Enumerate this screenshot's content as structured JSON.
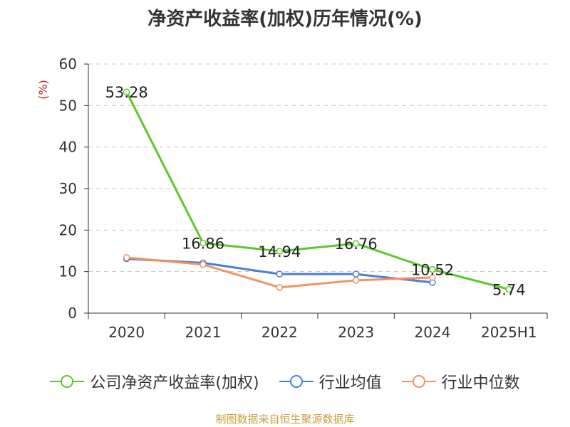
{
  "chart_data": {
    "type": "line",
    "title": "净资产收益率(加权)历年情况(%)",
    "ylabel": "(%)",
    "xlabel": "",
    "categories": [
      "2020",
      "2021",
      "2022",
      "2023",
      "2024",
      "2025H1"
    ],
    "ylim": [
      0,
      60
    ],
    "yticks": [
      0,
      10,
      20,
      30,
      40,
      50,
      60
    ],
    "grid": true,
    "legend_position": "bottom",
    "series": [
      {
        "name": "公司净资产收益率(加权)",
        "color": "#5cc72a",
        "values": [
          53.28,
          16.86,
          14.94,
          16.76,
          10.52,
          5.74
        ],
        "labels": [
          "53.28",
          "16.86",
          "14.94",
          "16.76",
          "10.52",
          "5.74"
        ]
      },
      {
        "name": "行业均值",
        "color": "#4a7fd6",
        "values": [
          13.1,
          12.1,
          9.4,
          9.4,
          7.4,
          null
        ],
        "labels": []
      },
      {
        "name": "行业中位数",
        "color": "#f39262",
        "values": [
          13.4,
          11.7,
          6.2,
          7.9,
          8.6,
          null
        ],
        "labels": []
      }
    ],
    "source": "制图数据来自恒生聚源数据库"
  }
}
